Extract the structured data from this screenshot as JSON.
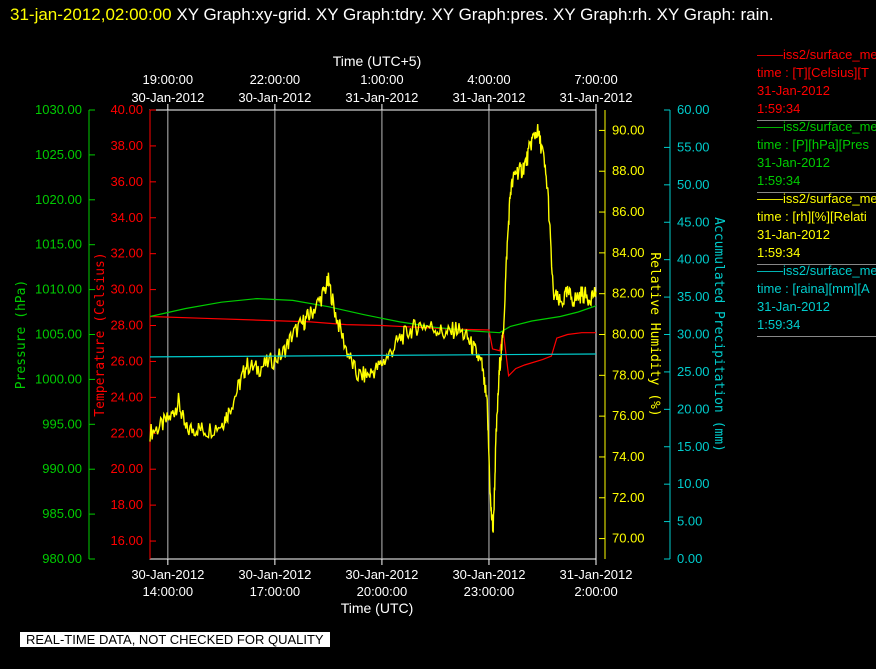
{
  "header": {
    "timestamp": "31-jan-2012,02:00:00",
    "graphs": "  XY Graph:xy-grid.  XY Graph:tdry.  XY Graph:pres.  XY Graph:rh.  XY Graph: rain."
  },
  "notice": "REAL-TIME DATA, NOT CHECKED FOR QUALITY",
  "colors": {
    "temp": "#ff0000",
    "pres": "#00cc00",
    "rh": "#ffff00",
    "rain": "#00cccc",
    "grid": "#ffffff"
  },
  "legend": [
    {
      "line": "——iss2/surface_me",
      "vars": "time : [T][Celsius][T",
      "date": "31-Jan-2012",
      "time": "1:59:34",
      "color": "#ff0000"
    },
    {
      "line": "——iss2/surface_me",
      "vars": "time : [P][hPa][Pres",
      "date": "31-Jan-2012",
      "time": "1:59:34",
      "color": "#00cc00"
    },
    {
      "line": "——iss2/surface_me",
      "vars": "time : [rh][%][Relati",
      "date": "31-Jan-2012",
      "time": "1:59:34",
      "color": "#ffff00"
    },
    {
      "line": "——iss2/surface_me",
      "vars": "time : [raina][mm][A",
      "date": "31-Jan-2012",
      "time": "1:59:34",
      "color": "#00cccc"
    }
  ],
  "chart_data": {
    "type": "line",
    "x_label_bottom": "Time (UTC)",
    "x_label_top": "Time (UTC+5)",
    "x_range_hours": [
      13.5,
      26.0
    ],
    "bottom_ticks": [
      {
        "h": 14,
        "date": "30-Jan-2012",
        "time": "14:00:00"
      },
      {
        "h": 17,
        "date": "30-Jan-2012",
        "time": "17:00:00"
      },
      {
        "h": 20,
        "date": "30-Jan-2012",
        "time": "20:00:00"
      },
      {
        "h": 23,
        "date": "30-Jan-2012",
        "time": "23:00:00"
      },
      {
        "h": 26,
        "date": "31-Jan-2012",
        "time": "2:00:00"
      }
    ],
    "top_ticks": [
      {
        "h": 14,
        "time": "19:00:00",
        "date": "30-Jan-2012"
      },
      {
        "h": 17,
        "time": "22:00:00",
        "date": "30-Jan-2012"
      },
      {
        "h": 20,
        "time": "1:00:00",
        "date": "31-Jan-2012"
      },
      {
        "h": 23,
        "time": "4:00:00",
        "date": "31-Jan-2012"
      },
      {
        "h": 26,
        "time": "7:00:00",
        "date": "31-Jan-2012"
      }
    ],
    "axes": {
      "pressure": {
        "label": "Pressure (hPa)",
        "range": [
          980,
          1030
        ],
        "ticks": [
          "980.00",
          "985.00",
          "990.00",
          "995.00",
          "1000.00",
          "1005.00",
          "1010.00",
          "1015.00",
          "1020.00",
          "1025.00",
          "1030.00"
        ]
      },
      "temperature": {
        "label": "Temperature (Celsius)",
        "range": [
          15,
          40
        ],
        "ticks": [
          "16.00",
          "18.00",
          "20.00",
          "22.00",
          "24.00",
          "26.00",
          "28.00",
          "30.00",
          "32.00",
          "34.00",
          "36.00",
          "38.00",
          "40.00"
        ]
      },
      "humidity": {
        "label": "Relative Humidity (%)",
        "range": [
          69,
          91
        ],
        "ticks": [
          "70.00",
          "72.00",
          "74.00",
          "76.00",
          "78.00",
          "80.00",
          "82.00",
          "84.00",
          "86.00",
          "88.00",
          "90.00"
        ]
      },
      "precip": {
        "label": "Accumulated Precipitation (mm)",
        "range": [
          0,
          60
        ],
        "ticks": [
          "0.00",
          "5.00",
          "10.00",
          "15.00",
          "20.00",
          "25.00",
          "30.00",
          "35.00",
          "40.00",
          "45.00",
          "50.00",
          "55.00",
          "60.00"
        ]
      }
    },
    "series": [
      {
        "name": "temperature",
        "axis": "temperature",
        "color": "#ff0000",
        "points": [
          [
            13.5,
            28.5
          ],
          [
            15,
            28.4
          ],
          [
            16.5,
            28.3
          ],
          [
            18,
            28.2
          ],
          [
            19,
            28.05
          ],
          [
            20,
            28.0
          ],
          [
            21,
            27.9
          ],
          [
            22,
            27.8
          ],
          [
            23,
            27.75
          ],
          [
            23.1,
            26.7
          ],
          [
            23.3,
            26.6
          ],
          [
            23.4,
            27.7
          ],
          [
            23.55,
            25.2
          ],
          [
            23.75,
            25.6
          ],
          [
            24,
            25.8
          ],
          [
            24.5,
            26.1
          ],
          [
            24.75,
            26.3
          ],
          [
            24.9,
            27.3
          ],
          [
            25.2,
            27.5
          ],
          [
            25.6,
            27.6
          ],
          [
            26.0,
            27.6
          ]
        ]
      },
      {
        "name": "pressure",
        "axis": "pressure",
        "color": "#00cc00",
        "points": [
          [
            13.5,
            1007.0
          ],
          [
            14.5,
            1007.9
          ],
          [
            15.5,
            1008.6
          ],
          [
            16.5,
            1009.0
          ],
          [
            17.5,
            1008.8
          ],
          [
            18.5,
            1008.1
          ],
          [
            19.5,
            1007.2
          ],
          [
            20.5,
            1006.4
          ],
          [
            21.5,
            1005.8
          ],
          [
            22.5,
            1005.4
          ],
          [
            23.3,
            1005.2
          ],
          [
            23.6,
            1005.9
          ],
          [
            24.2,
            1006.5
          ],
          [
            25,
            1007.0
          ],
          [
            25.5,
            1007.5
          ],
          [
            26.0,
            1008.2
          ]
        ]
      },
      {
        "name": "humidity",
        "axis": "humidity",
        "color": "#ffff00",
        "points": [
          [
            13.5,
            75.2
          ],
          [
            13.8,
            75.5
          ],
          [
            14.1,
            76.0
          ],
          [
            14.3,
            76.7
          ],
          [
            14.5,
            75.3
          ],
          [
            14.8,
            75.4
          ],
          [
            15.1,
            75.3
          ],
          [
            15.5,
            75.6
          ],
          [
            15.7,
            76.2
          ],
          [
            16.0,
            77.5
          ],
          [
            16.2,
            78.5
          ],
          [
            16.5,
            78.3
          ],
          [
            16.8,
            78.6
          ],
          [
            17.2,
            79.0
          ],
          [
            17.5,
            80.0
          ],
          [
            17.8,
            80.6
          ],
          [
            18.0,
            81.0
          ],
          [
            18.3,
            81.8
          ],
          [
            18.5,
            82.6
          ],
          [
            18.7,
            81.0
          ],
          [
            19.0,
            79.3
          ],
          [
            19.3,
            78.0
          ],
          [
            19.6,
            78.0
          ],
          [
            19.9,
            78.4
          ],
          [
            20.2,
            79.0
          ],
          [
            20.5,
            79.8
          ],
          [
            20.8,
            80.2
          ],
          [
            21.1,
            80.5
          ],
          [
            21.5,
            80.3
          ],
          [
            21.8,
            80.0
          ],
          [
            22.1,
            80.3
          ],
          [
            22.4,
            79.8
          ],
          [
            22.6,
            79.2
          ],
          [
            22.8,
            78.5
          ],
          [
            22.95,
            76.5
          ],
          [
            23.05,
            71.5
          ],
          [
            23.12,
            70.4
          ],
          [
            23.2,
            75.0
          ],
          [
            23.3,
            78.5
          ],
          [
            23.4,
            80.0
          ],
          [
            23.5,
            84.0
          ],
          [
            23.6,
            87.0
          ],
          [
            23.75,
            88.0
          ],
          [
            23.9,
            88.0
          ],
          [
            24.05,
            88.5
          ],
          [
            24.2,
            89.5
          ],
          [
            24.35,
            90.0
          ],
          [
            24.5,
            89.0
          ],
          [
            24.65,
            87.0
          ],
          [
            24.8,
            82.0
          ],
          [
            25.0,
            81.5
          ],
          [
            25.2,
            82.0
          ],
          [
            25.4,
            81.7
          ],
          [
            25.6,
            82.0
          ],
          [
            25.8,
            81.8
          ],
          [
            26.0,
            82.1
          ]
        ]
      },
      {
        "name": "precip",
        "axis": "precip",
        "color": "#00cccc",
        "points": [
          [
            13.5,
            27.0
          ],
          [
            26.0,
            27.4
          ]
        ]
      }
    ]
  }
}
